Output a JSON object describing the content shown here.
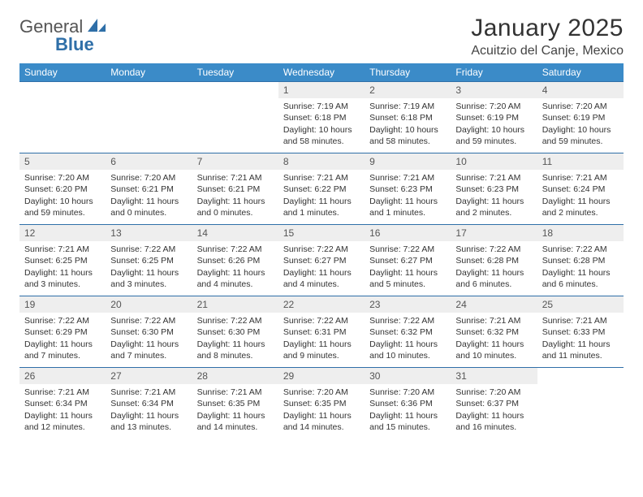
{
  "logo": {
    "word1": "General",
    "word2": "Blue"
  },
  "title": "January 2025",
  "location": "Acuitzio del Canje, Mexico",
  "colors": {
    "header_bg": "#3b8bc8",
    "header_text": "#ffffff",
    "border": "#2f6fa8",
    "daynum_bg": "#eeeeee",
    "text": "#333333"
  },
  "weekday_labels": [
    "Sunday",
    "Monday",
    "Tuesday",
    "Wednesday",
    "Thursday",
    "Friday",
    "Saturday"
  ],
  "weeks": [
    [
      null,
      null,
      null,
      {
        "n": "1",
        "sunrise": "7:19 AM",
        "sunset": "6:18 PM",
        "day_h": "10",
        "day_m": "58"
      },
      {
        "n": "2",
        "sunrise": "7:19 AM",
        "sunset": "6:18 PM",
        "day_h": "10",
        "day_m": "58"
      },
      {
        "n": "3",
        "sunrise": "7:20 AM",
        "sunset": "6:19 PM",
        "day_h": "10",
        "day_m": "59"
      },
      {
        "n": "4",
        "sunrise": "7:20 AM",
        "sunset": "6:19 PM",
        "day_h": "10",
        "day_m": "59"
      }
    ],
    [
      {
        "n": "5",
        "sunrise": "7:20 AM",
        "sunset": "6:20 PM",
        "day_h": "10",
        "day_m": "59"
      },
      {
        "n": "6",
        "sunrise": "7:20 AM",
        "sunset": "6:21 PM",
        "day_h": "11",
        "day_m": "0"
      },
      {
        "n": "7",
        "sunrise": "7:21 AM",
        "sunset": "6:21 PM",
        "day_h": "11",
        "day_m": "0"
      },
      {
        "n": "8",
        "sunrise": "7:21 AM",
        "sunset": "6:22 PM",
        "day_h": "11",
        "day_m": "1"
      },
      {
        "n": "9",
        "sunrise": "7:21 AM",
        "sunset": "6:23 PM",
        "day_h": "11",
        "day_m": "1"
      },
      {
        "n": "10",
        "sunrise": "7:21 AM",
        "sunset": "6:23 PM",
        "day_h": "11",
        "day_m": "2"
      },
      {
        "n": "11",
        "sunrise": "7:21 AM",
        "sunset": "6:24 PM",
        "day_h": "11",
        "day_m": "2"
      }
    ],
    [
      {
        "n": "12",
        "sunrise": "7:21 AM",
        "sunset": "6:25 PM",
        "day_h": "11",
        "day_m": "3"
      },
      {
        "n": "13",
        "sunrise": "7:22 AM",
        "sunset": "6:25 PM",
        "day_h": "11",
        "day_m": "3"
      },
      {
        "n": "14",
        "sunrise": "7:22 AM",
        "sunset": "6:26 PM",
        "day_h": "11",
        "day_m": "4"
      },
      {
        "n": "15",
        "sunrise": "7:22 AM",
        "sunset": "6:27 PM",
        "day_h": "11",
        "day_m": "4"
      },
      {
        "n": "16",
        "sunrise": "7:22 AM",
        "sunset": "6:27 PM",
        "day_h": "11",
        "day_m": "5"
      },
      {
        "n": "17",
        "sunrise": "7:22 AM",
        "sunset": "6:28 PM",
        "day_h": "11",
        "day_m": "6"
      },
      {
        "n": "18",
        "sunrise": "7:22 AM",
        "sunset": "6:28 PM",
        "day_h": "11",
        "day_m": "6"
      }
    ],
    [
      {
        "n": "19",
        "sunrise": "7:22 AM",
        "sunset": "6:29 PM",
        "day_h": "11",
        "day_m": "7"
      },
      {
        "n": "20",
        "sunrise": "7:22 AM",
        "sunset": "6:30 PM",
        "day_h": "11",
        "day_m": "7"
      },
      {
        "n": "21",
        "sunrise": "7:22 AM",
        "sunset": "6:30 PM",
        "day_h": "11",
        "day_m": "8"
      },
      {
        "n": "22",
        "sunrise": "7:22 AM",
        "sunset": "6:31 PM",
        "day_h": "11",
        "day_m": "9"
      },
      {
        "n": "23",
        "sunrise": "7:22 AM",
        "sunset": "6:32 PM",
        "day_h": "11",
        "day_m": "10"
      },
      {
        "n": "24",
        "sunrise": "7:21 AM",
        "sunset": "6:32 PM",
        "day_h": "11",
        "day_m": "10"
      },
      {
        "n": "25",
        "sunrise": "7:21 AM",
        "sunset": "6:33 PM",
        "day_h": "11",
        "day_m": "11"
      }
    ],
    [
      {
        "n": "26",
        "sunrise": "7:21 AM",
        "sunset": "6:34 PM",
        "day_h": "11",
        "day_m": "12"
      },
      {
        "n": "27",
        "sunrise": "7:21 AM",
        "sunset": "6:34 PM",
        "day_h": "11",
        "day_m": "13"
      },
      {
        "n": "28",
        "sunrise": "7:21 AM",
        "sunset": "6:35 PM",
        "day_h": "11",
        "day_m": "14"
      },
      {
        "n": "29",
        "sunrise": "7:20 AM",
        "sunset": "6:35 PM",
        "day_h": "11",
        "day_m": "14"
      },
      {
        "n": "30",
        "sunrise": "7:20 AM",
        "sunset": "6:36 PM",
        "day_h": "11",
        "day_m": "15"
      },
      {
        "n": "31",
        "sunrise": "7:20 AM",
        "sunset": "6:37 PM",
        "day_h": "11",
        "day_m": "16"
      },
      null
    ]
  ],
  "labels": {
    "sunrise_prefix": "Sunrise: ",
    "sunset_prefix": "Sunset: ",
    "daylight_prefix": "Daylight: ",
    "hours_word": " hours",
    "and_word": "and ",
    "minutes_word": " minutes."
  }
}
